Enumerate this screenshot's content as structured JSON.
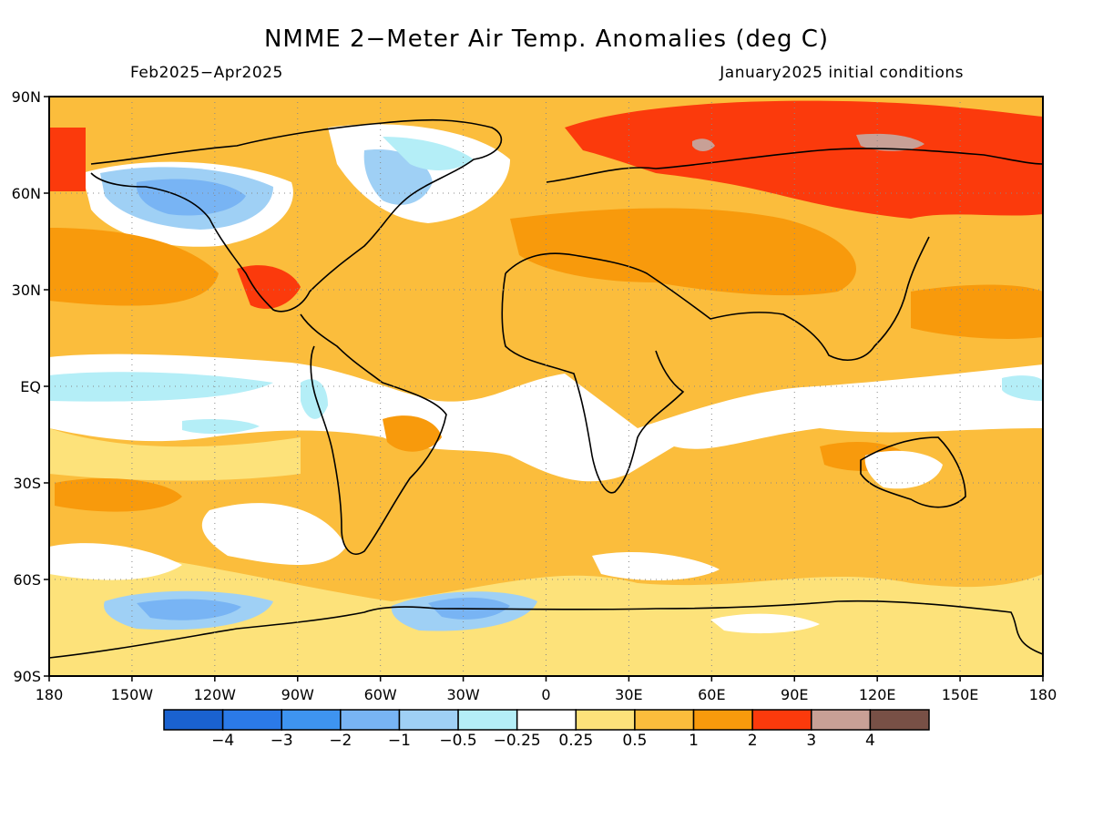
{
  "title": "NMME 2−Meter Air Temp. Anomalies (deg C)",
  "period": "Feb2025−Apr2025",
  "init": "January2025 initial conditions",
  "lat_labels": [
    "90N",
    "60N",
    "30N",
    "EQ",
    "30S",
    "60S",
    "90S"
  ],
  "lon_labels": [
    "180",
    "150W",
    "120W",
    "90W",
    "60W",
    "30W",
    "0",
    "30E",
    "60E",
    "90E",
    "120E",
    "150E",
    "180"
  ],
  "legend": {
    "colors": [
      "#1a62d0",
      "#2b7ae8",
      "#3e94f0",
      "#78b4f4",
      "#9fd0f5",
      "#b4eef7",
      "#ffffff",
      "#fde27a",
      "#fbbd3c",
      "#f89a0c",
      "#fb3a0c",
      "#c8a096",
      "#785046"
    ],
    "labels": [
      "−4",
      "−3",
      "−2",
      "−1",
      "−0.5",
      "−0.25",
      "0.25",
      "0.5",
      "1",
      "2",
      "3",
      "4"
    ]
  }
}
